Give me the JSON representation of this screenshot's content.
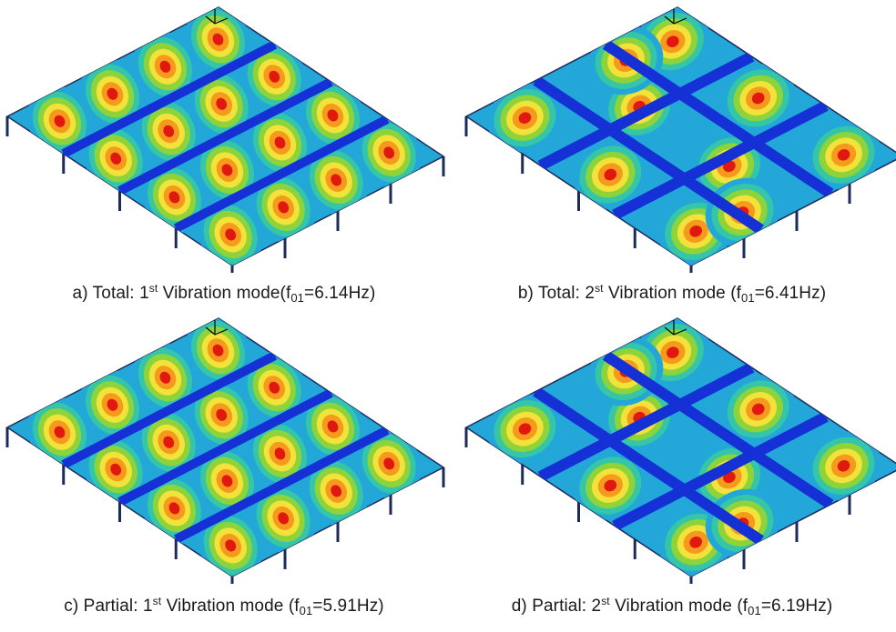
{
  "colors": {
    "background": "#ffffff",
    "plate_low": "#1531d6",
    "contour_band_1": "#22a7d8",
    "contour_band_2": "#35c6a8",
    "contour_band_3": "#8fd33a",
    "contour_band_4": "#f2e23a",
    "contour_band_5": "#f59a1c",
    "contour_peak": "#e0180f",
    "columns": "#1d2b5a"
  },
  "panels": [
    {
      "id": "a",
      "caption": {
        "prefix": "a) Total: 1",
        "ordinal": "st",
        "mode_text": " Vibration mode(f",
        "freq_sub": "01",
        "freq_value": "=6.14Hz)"
      },
      "mode_shape": "mode-1-longitudinal-bands",
      "nodal_lines": 3
    },
    {
      "id": "b",
      "caption": {
        "prefix": "b) Total: 2",
        "ordinal": "st",
        "mode_text": " Vibration mode (f",
        "freq_sub": "01",
        "freq_value": "=6.41Hz)"
      },
      "mode_shape": "mode-2-checkerboard",
      "nodal_lines": 5
    },
    {
      "id": "c",
      "caption": {
        "prefix": "c) Partial: 1",
        "ordinal": "st",
        "mode_text": " Vibration mode (f",
        "freq_sub": "01",
        "freq_value": "=5.91Hz)"
      },
      "mode_shape": "mode-1-longitudinal-bands",
      "nodal_lines": 3
    },
    {
      "id": "d",
      "caption": {
        "prefix": "d) Partial: 2",
        "ordinal": "st",
        "mode_text": " Vibration mode (f",
        "freq_sub": "01",
        "freq_value": "=6.19Hz)"
      },
      "mode_shape": "mode-2-checkerboard",
      "nodal_lines": 5
    }
  ]
}
